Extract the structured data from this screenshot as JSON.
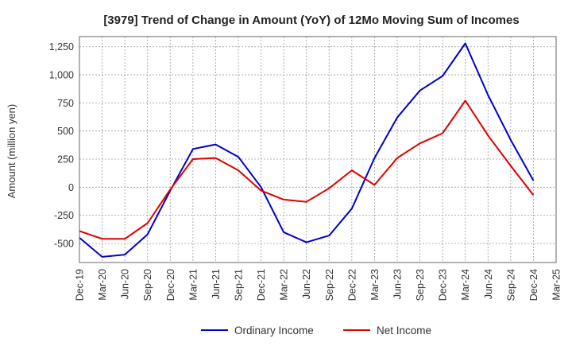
{
  "chart_data": {
    "type": "line",
    "title": "[3979]  Trend of Change in Amount (YoY) of 12Mo Moving Sum of Incomes",
    "xlabel": "",
    "ylabel": "Amount (million yen)",
    "categories": [
      "Dec-19",
      "Mar-20",
      "Jun-20",
      "Sep-20",
      "Dec-20",
      "Mar-21",
      "Jun-21",
      "Sep-21",
      "Dec-21",
      "Mar-22",
      "Jun-22",
      "Sep-22",
      "Dec-22",
      "Mar-23",
      "Jun-23",
      "Sep-23",
      "Dec-23",
      "Mar-24",
      "Jun-24",
      "Sep-24",
      "Dec-24",
      "Mar-25"
    ],
    "ylim": [
      -670,
      1340
    ],
    "yticks": [
      -500,
      -250,
      0,
      250,
      500,
      750,
      1000,
      1250
    ],
    "ytick_labels": [
      "-500",
      "-250",
      "0",
      "250",
      "500",
      "750",
      "1,000",
      "1,250"
    ],
    "grid": true,
    "legend_position": "bottom",
    "series": [
      {
        "name": "Ordinary Income",
        "color": "#0000cc",
        "values": [
          -450,
          -620,
          -600,
          -420,
          -30,
          340,
          380,
          270,
          0,
          -400,
          -490,
          -430,
          -190,
          260,
          620,
          860,
          990,
          1280,
          820,
          420,
          60,
          null
        ]
      },
      {
        "name": "Net Income",
        "color": "#dd0000",
        "values": [
          -390,
          -460,
          -460,
          -320,
          -20,
          250,
          260,
          150,
          -30,
          -110,
          -130,
          -10,
          150,
          20,
          260,
          390,
          480,
          770,
          460,
          190,
          -70,
          null
        ]
      }
    ]
  }
}
